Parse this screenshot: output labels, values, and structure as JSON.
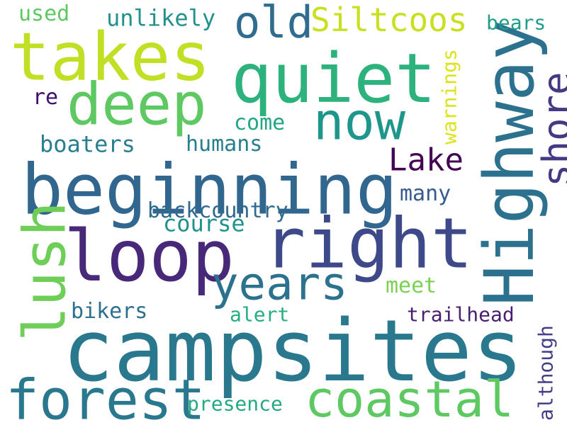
{
  "cloud": {
    "words": [
      {
        "text": "campsites",
        "color": "#2a788e"
      },
      {
        "text": "Highway",
        "color": "#2c728e"
      },
      {
        "text": "beginning",
        "color": "#31668e"
      },
      {
        "text": "loop",
        "color": "#482878"
      },
      {
        "text": "right",
        "color": "#3e4989"
      },
      {
        "text": "quiet",
        "color": "#2db27d"
      },
      {
        "text": "takes",
        "color": "#c0df25"
      },
      {
        "text": "lush",
        "color": "#6ece58"
      },
      {
        "text": "deep",
        "color": "#5ec962"
      },
      {
        "text": "forest",
        "color": "#2a788e"
      },
      {
        "text": "coastal",
        "color": "#5ec962"
      },
      {
        "text": "now",
        "color": "#1f968b"
      },
      {
        "text": "years",
        "color": "#2c718e"
      },
      {
        "text": "old",
        "color": "#2f6c8e"
      },
      {
        "text": "shore",
        "color": "#443a83"
      },
      {
        "text": "Siltcoos",
        "color": "#c8e020"
      },
      {
        "text": "Lake",
        "color": "#440154"
      },
      {
        "text": "unlikely",
        "color": "#21918c"
      },
      {
        "text": "used",
        "color": "#5ec962"
      },
      {
        "text": "bears",
        "color": "#1f9e89"
      },
      {
        "text": "warnings",
        "color": "#dde318"
      },
      {
        "text": "re",
        "color": "#3b0f70"
      },
      {
        "text": "come",
        "color": "#21a685"
      },
      {
        "text": "boaters",
        "color": "#287d8e"
      },
      {
        "text": "humans",
        "color": "#277f8e"
      },
      {
        "text": "many",
        "color": "#375b8d"
      },
      {
        "text": "backcountry",
        "color": "#306a8e"
      },
      {
        "text": "course",
        "color": "#20928c"
      },
      {
        "text": "meet",
        "color": "#7ad151"
      },
      {
        "text": "bikers",
        "color": "#2d708e"
      },
      {
        "text": "alert",
        "color": "#26ad81"
      },
      {
        "text": "trailhead",
        "color": "#481f71"
      },
      {
        "text": "although",
        "color": "#433e85"
      },
      {
        "text": "presence",
        "color": "#23a983"
      }
    ]
  }
}
